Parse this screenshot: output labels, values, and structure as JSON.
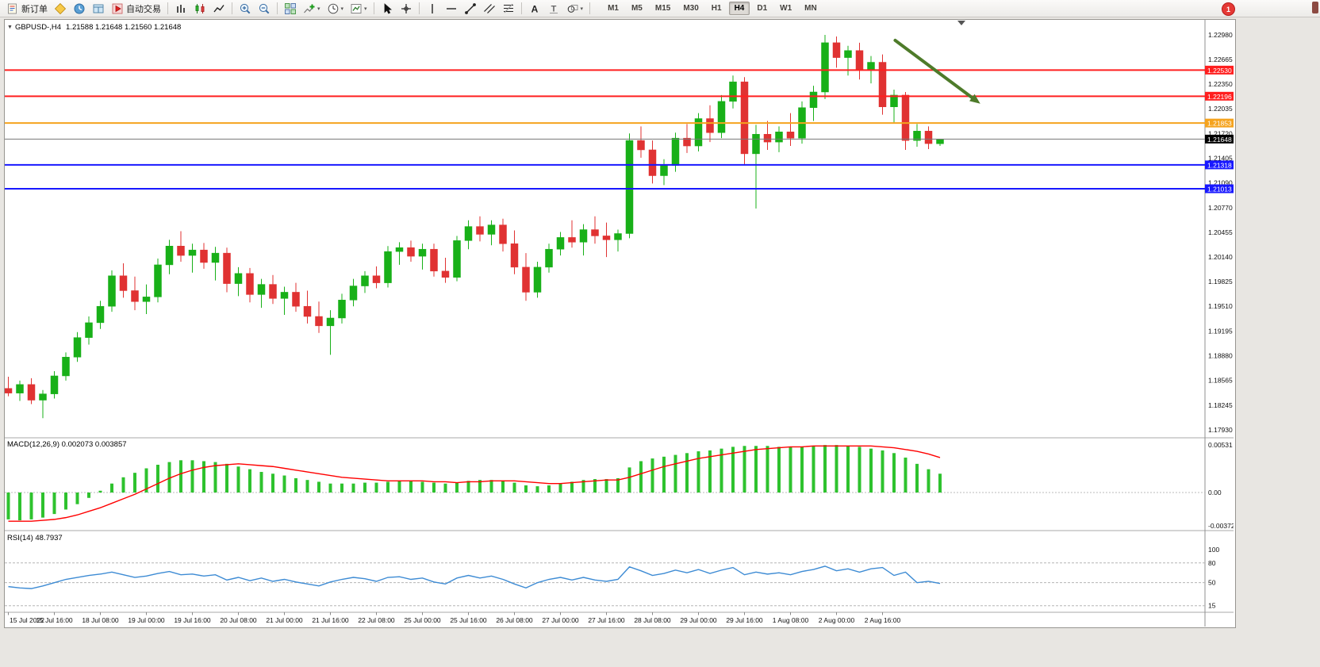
{
  "toolbar": {
    "new_order_label": "新订单",
    "auto_trading_label": "自动交易",
    "notification_badge": "1",
    "buttons": [
      {
        "name": "new-order",
        "icon": "new-order",
        "label": "新订单"
      },
      {
        "name": "expert-advisors",
        "icon": "expert-advisors"
      },
      {
        "name": "market-watch",
        "icon": "market-watch"
      },
      {
        "name": "data-window",
        "icon": "data-window"
      },
      {
        "name": "auto-trading",
        "icon": "auto-trading",
        "label": "自动交易"
      },
      {
        "sep": true
      },
      {
        "name": "bar-chart-mode",
        "icon": "bar-chart"
      },
      {
        "name": "candlestick-mode",
        "icon": "candlestick"
      },
      {
        "name": "line-chart-mode",
        "icon": "line-chart"
      },
      {
        "sep": true
      },
      {
        "name": "zoom-in",
        "icon": "zoom-in"
      },
      {
        "name": "zoom-out",
        "icon": "zoom-out"
      },
      {
        "sep": true
      },
      {
        "name": "tile-windows",
        "icon": "tile-windows"
      },
      {
        "name": "indicators",
        "icon": "indicators",
        "dropdown": true
      },
      {
        "name": "periods",
        "icon": "periods",
        "dropdown": true
      },
      {
        "name": "templates",
        "icon": "templates",
        "dropdown": true
      },
      {
        "sep": true
      },
      {
        "name": "cursor",
        "icon": "cursor"
      },
      {
        "name": "crosshair",
        "icon": "crosshair"
      },
      {
        "sep": true
      },
      {
        "name": "vertical-line",
        "icon": "vertical-line"
      },
      {
        "name": "horizontal-line",
        "icon": "horizontal-line"
      },
      {
        "name": "trendline",
        "icon": "trendline"
      },
      {
        "name": "equidistant-channel",
        "icon": "channel"
      },
      {
        "name": "fibonacci",
        "icon": "fibonacci"
      },
      {
        "sep": true
      },
      {
        "name": "text",
        "icon": "text"
      },
      {
        "name": "text-label",
        "icon": "text-label"
      },
      {
        "name": "arrows",
        "icon": "shapes",
        "dropdown": true
      },
      {
        "sep": true
      }
    ],
    "timeframes": [
      "M1",
      "M5",
      "M15",
      "M30",
      "H1",
      "H4",
      "D1",
      "W1",
      "MN"
    ],
    "active_timeframe": "H4"
  },
  "chart_window": {
    "symbol_title": "GBPUSD-,H4",
    "ohlc_display": "1.21588 1.21648 1.21560 1.21648",
    "macd_label": "MACD(12,26,9)",
    "macd_values": "0.002073 0.003857",
    "rsi_label": "RSI(14)",
    "rsi_value": "48.7937"
  },
  "chart_data": [
    {
      "type": "candlestick",
      "title": "GBPUSD- H4",
      "timeframe": "H4",
      "ylim": [
        1.1793,
        1.2298
      ],
      "price_axis_labels": [
        "1.22980",
        "1.22665",
        "1.22350",
        "1.22035",
        "1.21720",
        "1.21405",
        "1.21090",
        "1.20770",
        "1.20455",
        "1.20140",
        "1.19825",
        "1.19510",
        "1.19195",
        "1.18880",
        "1.18565",
        "1.18245",
        "1.17930"
      ],
      "time_axis_labels": [
        "15 Jul 2022",
        "15 Jul 16:00",
        "18 Jul 08:00",
        "19 Jul 00:00",
        "19 Jul 16:00",
        "20 Jul 08:00",
        "21 Jul 00:00",
        "21 Jul 16:00",
        "22 Jul 08:00",
        "25 Jul 00:00",
        "25 Jul 16:00",
        "26 Jul 08:00",
        "27 Jul 00:00",
        "27 Jul 16:00",
        "28 Jul 08:00",
        "29 Jul 00:00",
        "29 Jul 16:00",
        "1 Aug 08:00",
        "2 Aug 00:00",
        "2 Aug 16:00"
      ],
      "candles_ohlc": [
        [
          1.1846,
          1.1861,
          1.1836,
          1.184
        ],
        [
          1.184,
          1.1856,
          1.183,
          1.1851
        ],
        [
          1.1851,
          1.1859,
          1.1826,
          1.1831
        ],
        [
          1.1831,
          1.1844,
          1.1808,
          1.1839
        ],
        [
          1.1839,
          1.1868,
          1.1833,
          1.1862
        ],
        [
          1.1862,
          1.1892,
          1.1856,
          1.1886
        ],
        [
          1.1886,
          1.1918,
          1.188,
          1.1911
        ],
        [
          1.1911,
          1.1938,
          1.1902,
          1.193
        ],
        [
          1.193,
          1.1958,
          1.1922,
          1.1951
        ],
        [
          1.1951,
          1.1997,
          1.1944,
          1.199
        ],
        [
          1.199,
          1.2006,
          1.1962,
          1.1971
        ],
        [
          1.1971,
          1.1989,
          1.1946,
          1.1957
        ],
        [
          1.1957,
          1.1979,
          1.1941,
          1.1963
        ],
        [
          1.1963,
          1.2012,
          1.1956,
          1.2004
        ],
        [
          1.2004,
          1.2036,
          1.1992,
          1.2028
        ],
        [
          1.2028,
          1.2047,
          1.2008,
          1.2016
        ],
        [
          1.2016,
          1.2031,
          1.1994,
          1.2023
        ],
        [
          1.2023,
          1.2032,
          1.1999,
          1.2007
        ],
        [
          1.2007,
          1.2027,
          1.1984,
          1.2019
        ],
        [
          1.2019,
          1.2026,
          1.1969,
          1.198
        ],
        [
          1.198,
          1.2001,
          1.1964,
          1.1993
        ],
        [
          1.1993,
          1.2,
          1.1956,
          1.1966
        ],
        [
          1.1966,
          1.1986,
          1.1949,
          1.1979
        ],
        [
          1.1979,
          1.1991,
          1.1954,
          1.1961
        ],
        [
          1.1961,
          1.1976,
          1.194,
          1.1969
        ],
        [
          1.1969,
          1.1981,
          1.1944,
          1.1951
        ],
        [
          1.1951,
          1.1971,
          1.1929,
          1.1938
        ],
        [
          1.1938,
          1.1957,
          1.1917,
          1.1926
        ],
        [
          1.1926,
          1.1946,
          1.1889,
          1.1936
        ],
        [
          1.1936,
          1.1967,
          1.1929,
          1.1959
        ],
        [
          1.1959,
          1.1986,
          1.1951,
          1.1977
        ],
        [
          1.1977,
          1.1996,
          1.1968,
          1.199
        ],
        [
          1.199,
          1.2002,
          1.1974,
          1.1981
        ],
        [
          1.1981,
          1.2028,
          1.1975,
          1.2021
        ],
        [
          1.2021,
          1.2033,
          1.2004,
          1.2026
        ],
        [
          1.2026,
          1.2035,
          1.2008,
          1.2015
        ],
        [
          1.2015,
          1.2031,
          1.1998,
          1.2024
        ],
        [
          1.2024,
          1.2031,
          1.1989,
          1.1996
        ],
        [
          1.1996,
          1.2013,
          1.1981,
          1.1988
        ],
        [
          1.1988,
          1.2041,
          1.1983,
          1.2035
        ],
        [
          1.2035,
          1.2061,
          1.2024,
          1.2053
        ],
        [
          1.2053,
          1.2066,
          1.2034,
          1.2043
        ],
        [
          1.2043,
          1.2061,
          1.2029,
          1.2055
        ],
        [
          1.2055,
          1.2063,
          1.2021,
          1.2031
        ],
        [
          1.2031,
          1.2048,
          1.1992,
          1.2001
        ],
        [
          1.2001,
          1.2019,
          1.1958,
          1.1969
        ],
        [
          1.1969,
          1.2008,
          1.1962,
          1.2001
        ],
        [
          1.2001,
          1.2031,
          1.1994,
          1.2024
        ],
        [
          1.2024,
          1.2046,
          1.2016,
          1.2039
        ],
        [
          1.2039,
          1.2061,
          1.2026,
          1.2033
        ],
        [
          1.2033,
          1.2056,
          1.2016,
          1.2049
        ],
        [
          1.2049,
          1.2066,
          1.2031,
          1.2041
        ],
        [
          1.2041,
          1.2058,
          1.2014,
          1.2036
        ],
        [
          1.2036,
          1.2049,
          1.2021,
          1.2044
        ],
        [
          1.2044,
          1.2172,
          1.2038,
          1.2163
        ],
        [
          1.2163,
          1.2181,
          1.2141,
          1.2151
        ],
        [
          1.2151,
          1.2163,
          1.2108,
          1.2118
        ],
        [
          1.2118,
          1.2139,
          1.2106,
          1.2131
        ],
        [
          1.2131,
          1.2173,
          1.2123,
          1.2166
        ],
        [
          1.2166,
          1.2184,
          1.2147,
          1.2156
        ],
        [
          1.2156,
          1.2198,
          1.2149,
          1.2191
        ],
        [
          1.2191,
          1.2208,
          1.2161,
          1.2173
        ],
        [
          1.2173,
          1.2221,
          1.2166,
          1.2213
        ],
        [
          1.2213,
          1.2246,
          1.2204,
          1.2238
        ],
        [
          1.2238,
          1.2244,
          1.2131,
          1.2146
        ],
        [
          1.2146,
          1.2183,
          1.2076,
          1.2171
        ],
        [
          1.2171,
          1.2188,
          1.2151,
          1.2161
        ],
        [
          1.2161,
          1.2181,
          1.2148,
          1.2174
        ],
        [
          1.2174,
          1.2198,
          1.2156,
          1.2166
        ],
        [
          1.2166,
          1.2213,
          1.2159,
          1.2205
        ],
        [
          1.2205,
          1.2233,
          1.2188,
          1.2225
        ],
        [
          1.2225,
          1.2298,
          1.2216,
          1.2288
        ],
        [
          1.2288,
          1.2296,
          1.2256,
          1.2269
        ],
        [
          1.2269,
          1.2284,
          1.2246,
          1.2278
        ],
        [
          1.2278,
          1.2288,
          1.2241,
          1.2253
        ],
        [
          1.2253,
          1.2271,
          1.2236,
          1.2263
        ],
        [
          1.2263,
          1.2273,
          1.2196,
          1.2206
        ],
        [
          1.2206,
          1.2228,
          1.2186,
          1.2221
        ],
        [
          1.2221,
          1.2225,
          1.2151,
          1.2163
        ],
        [
          1.2163,
          1.2184,
          1.2155,
          1.2175
        ],
        [
          1.2175,
          1.2181,
          1.2152,
          1.2159
        ],
        [
          1.21588,
          1.21648,
          1.2156,
          1.21648
        ]
      ],
      "hlines": [
        {
          "value": 1.2253,
          "label": "1.22530",
          "color": "#ff1f1f"
        },
        {
          "value": 1.22196,
          "label": "1.22196",
          "color": "#ff1f1f"
        },
        {
          "value": 1.21853,
          "label": "1.21853",
          "color": "#f5a31e"
        },
        {
          "value": 1.21318,
          "label": "1.21318",
          "color": "#1818ff"
        },
        {
          "value": 1.21013,
          "label": "1.21013",
          "color": "#1818ff"
        }
      ],
      "current_price": {
        "value": 1.21648,
        "label": "1.21648",
        "color": "#000000"
      },
      "trend_arrow": {
        "from_index": 77.1,
        "from_price": 1.2291,
        "to_index": 84.5,
        "to_price": 1.221,
        "color": "#4e7b2a"
      },
      "colors": {
        "bull": "#18b018",
        "bear": "#e03232",
        "price_line": "#777777"
      }
    },
    {
      "type": "bar",
      "title": "MACD(12,26,9)",
      "values_display": "0.002073 0.003857",
      "ylim": [
        -0.00372,
        0.00531
      ],
      "axis_labels": [
        "0.00531",
        "0.00",
        "-0.00372"
      ],
      "histogram": [
        -0.003,
        -0.0031,
        -0.003,
        -0.0028,
        -0.0024,
        -0.0019,
        -0.0013,
        -0.0006,
        0.0002,
        0.001,
        0.0017,
        0.0022,
        0.0027,
        0.0031,
        0.0034,
        0.0036,
        0.0036,
        0.0035,
        0.0034,
        0.0032,
        0.0029,
        0.0026,
        0.0023,
        0.0021,
        0.0019,
        0.0016,
        0.0014,
        0.0012,
        0.001,
        0.001,
        0.001,
        0.0011,
        0.0011,
        0.0012,
        0.0013,
        0.0013,
        0.0012,
        0.0011,
        0.001,
        0.0011,
        0.0013,
        0.0014,
        0.0014,
        0.0013,
        0.0011,
        0.0008,
        0.0007,
        0.0008,
        0.001,
        0.0012,
        0.0014,
        0.0015,
        0.0015,
        0.0016,
        0.0028,
        0.0035,
        0.0038,
        0.004,
        0.0042,
        0.0044,
        0.0046,
        0.0047,
        0.0049,
        0.0051,
        0.0052,
        0.0052,
        0.0052,
        0.0051,
        0.0051,
        0.0051,
        0.0052,
        0.0053,
        0.0053,
        0.0052,
        0.0051,
        0.0049,
        0.0047,
        0.0044,
        0.0039,
        0.0032,
        0.0026,
        0.0021
      ],
      "signal_line": [
        -0.0032,
        -0.0032,
        -0.0032,
        -0.0031,
        -0.003,
        -0.0028,
        -0.0025,
        -0.0021,
        -0.0017,
        -0.0012,
        -0.0007,
        -0.0002,
        0.0004,
        0.001,
        0.0016,
        0.0021,
        0.0025,
        0.0028,
        0.003,
        0.0031,
        0.0032,
        0.0031,
        0.003,
        0.0029,
        0.0027,
        0.0025,
        0.0023,
        0.0021,
        0.0019,
        0.0017,
        0.0016,
        0.0015,
        0.0014,
        0.0013,
        0.0013,
        0.0013,
        0.0013,
        0.0012,
        0.0012,
        0.0011,
        0.0012,
        0.0012,
        0.0013,
        0.0013,
        0.0013,
        0.0012,
        0.0011,
        0.001,
        0.001,
        0.0011,
        0.0012,
        0.0013,
        0.0014,
        0.0014,
        0.0017,
        0.0021,
        0.0025,
        0.0029,
        0.0032,
        0.0035,
        0.0038,
        0.004,
        0.0042,
        0.0044,
        0.0046,
        0.0048,
        0.0049,
        0.005,
        0.0051,
        0.0051,
        0.0052,
        0.0052,
        0.0052,
        0.0052,
        0.0052,
        0.0052,
        0.0051,
        0.005,
        0.0048,
        0.0046,
        0.0043,
        0.0039
      ],
      "colors": {
        "histogram": "#2ec22e",
        "signal": "#ff0000"
      }
    },
    {
      "type": "line",
      "title": "RSI(14)",
      "current_value": 48.7937,
      "ylim": [
        0,
        100
      ],
      "levels": [
        80,
        50,
        15
      ],
      "axis_labels": [
        "100",
        "80",
        "50",
        "15"
      ],
      "values": [
        44,
        42,
        41,
        45,
        50,
        55,
        58,
        61,
        63,
        66,
        62,
        58,
        60,
        64,
        67,
        62,
        63,
        60,
        62,
        54,
        58,
        53,
        57,
        52,
        55,
        51,
        48,
        45,
        51,
        55,
        58,
        56,
        52,
        58,
        59,
        55,
        57,
        51,
        48,
        57,
        61,
        57,
        60,
        55,
        48,
        42,
        50,
        55,
        58,
        54,
        58,
        54,
        52,
        55,
        74,
        68,
        61,
        64,
        69,
        65,
        70,
        64,
        69,
        73,
        62,
        66,
        63,
        65,
        62,
        67,
        70,
        75,
        68,
        71,
        66,
        71,
        73,
        61,
        66,
        50,
        52,
        48.79
      ],
      "color": "#3d8bd4"
    }
  ]
}
